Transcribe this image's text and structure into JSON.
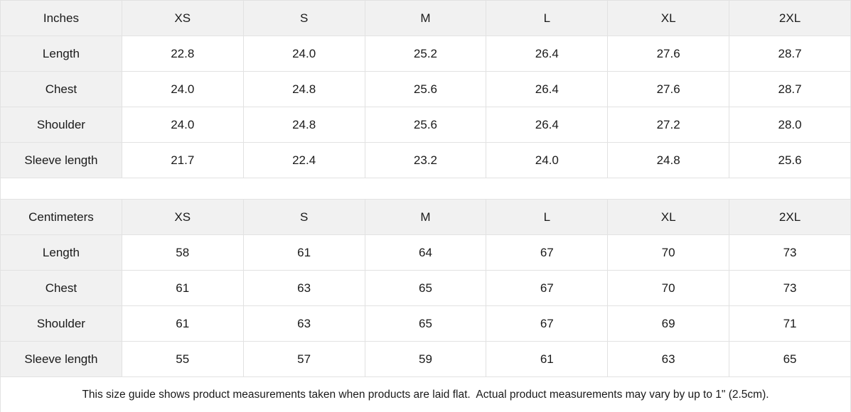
{
  "colors": {
    "header_bg": "#f1f1f1",
    "label_bg": "#f1f1f1",
    "border": "#e2e2e2",
    "text": "#1a1a1a",
    "cell_bg": "#ffffff"
  },
  "tables": [
    {
      "name": "inches",
      "unit_label": "Inches",
      "header": [
        "Inches",
        "XS",
        "S",
        "M",
        "L",
        "XL",
        "2XL"
      ],
      "rows": [
        {
          "label": "Length",
          "values": [
            "22.8",
            "24.0",
            "25.2",
            "26.4",
            "27.6",
            "28.7"
          ]
        },
        {
          "label": "Chest",
          "values": [
            "24.0",
            "24.8",
            "25.6",
            "26.4",
            "27.6",
            "28.7"
          ]
        },
        {
          "label": "Shoulder",
          "values": [
            "24.0",
            "24.8",
            "25.6",
            "26.4",
            "27.2",
            "28.0"
          ]
        },
        {
          "label": "Sleeve length",
          "values": [
            "21.7",
            "22.4",
            "23.2",
            "24.0",
            "24.8",
            "25.6"
          ]
        }
      ]
    },
    {
      "name": "centimeters",
      "unit_label": "Centimeters",
      "header": [
        "Centimeters",
        "XS",
        "S",
        "M",
        "L",
        "XL",
        "2XL"
      ],
      "rows": [
        {
          "label": "Length",
          "values": [
            "58",
            "61",
            "64",
            "67",
            "70",
            "73"
          ]
        },
        {
          "label": "Chest",
          "values": [
            "61",
            "63",
            "65",
            "67",
            "70",
            "73"
          ]
        },
        {
          "label": "Shoulder",
          "values": [
            "61",
            "63",
            "65",
            "67",
            "69",
            "71"
          ]
        },
        {
          "label": "Sleeve length",
          "values": [
            "55",
            "57",
            "59",
            "61",
            "63",
            "65"
          ]
        }
      ]
    }
  ],
  "footer": {
    "note": "This size guide shows product measurements taken when products are laid flat.  Actual product measurements may vary by up to 1\" (2.5cm)."
  }
}
